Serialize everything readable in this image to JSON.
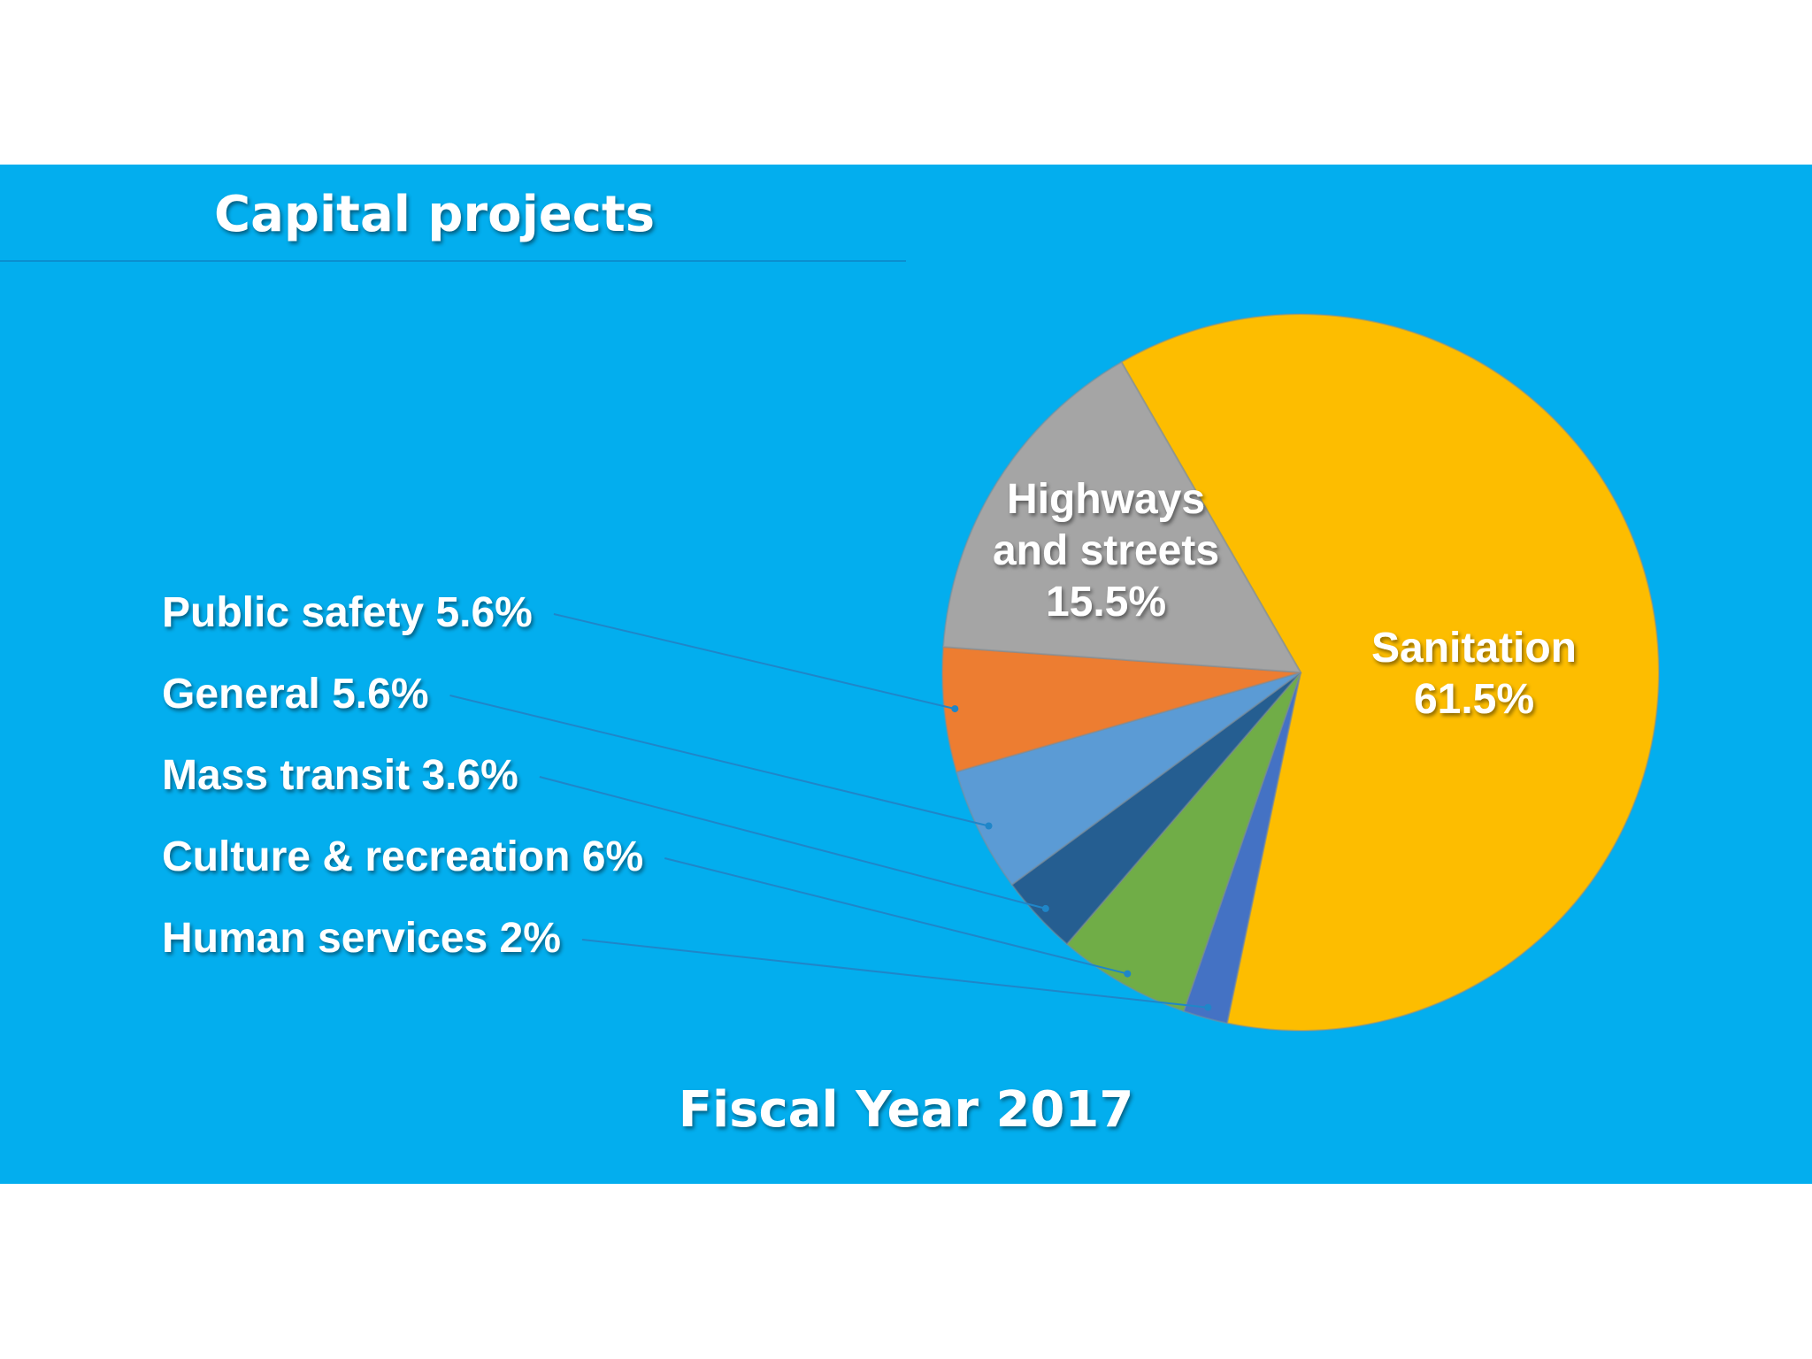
{
  "title": "Capital projects",
  "footer": "Fiscal Year 2017",
  "chart_data": {
    "type": "pie",
    "title": "Capital projects",
    "slices": [
      {
        "name": "Sanitation",
        "value": 61.5,
        "label": "61.5%",
        "color": "#fdbd00"
      },
      {
        "name": "Human services",
        "value": 2,
        "label": "2%",
        "color": "#4472c4"
      },
      {
        "name": "Culture & recreation",
        "value": 6,
        "label": "6%",
        "color": "#70ad47"
      },
      {
        "name": "Mass transit",
        "value": 3.6,
        "label": "3.6%",
        "color": "#255e91"
      },
      {
        "name": "General",
        "value": 5.6,
        "label": "5.6%",
        "color": "#5b9bd5"
      },
      {
        "name": "Public safety",
        "value": 5.6,
        "label": "5.6%",
        "color": "#ed7d31"
      },
      {
        "name": "Highways and streets",
        "value": 15.5,
        "label": "15.5%",
        "color": "#a5a5a5"
      }
    ],
    "inside_labels": {
      "Sanitation": [
        "Sanitation",
        "61.5%"
      ],
      "Highways and streets": [
        "Highways",
        "and streets",
        "15.5%"
      ]
    },
    "callout_labels": [
      {
        "name": "Public safety",
        "text": "Public safety 5.6%"
      },
      {
        "name": "General",
        "text": "General 5.6%"
      },
      {
        "name": "Mass transit",
        "text": "Mass transit 3.6%"
      },
      {
        "name": "Culture & recreation",
        "text": "Culture & recreation 6%"
      },
      {
        "name": "Human services",
        "text": "Human services 2%"
      }
    ]
  }
}
